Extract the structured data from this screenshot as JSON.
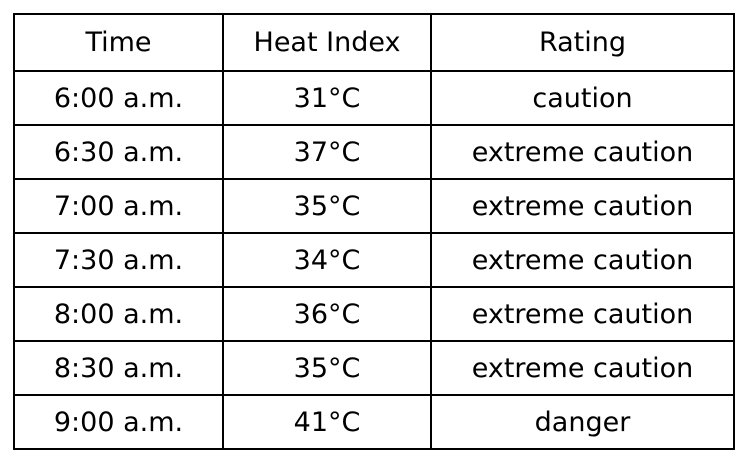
{
  "table": {
    "header": [
      "Time",
      "Heat Index",
      "Rating"
    ],
    "rows": [
      [
        "6:00 a.m.",
        "31°C",
        "caution"
      ],
      [
        "6:30 a.m.",
        "37°C",
        "extreme caution"
      ],
      [
        "7:00 a.m.",
        "35°C",
        "extreme caution"
      ],
      [
        "7:30 a.m.",
        "34°C",
        "extreme caution"
      ],
      [
        "8:00 a.m.",
        "36°C",
        "extreme caution"
      ],
      [
        "8:30 a.m.",
        "35°C",
        "extreme caution"
      ],
      [
        "9:00 a.m.",
        "41°C",
        "danger"
      ]
    ]
  }
}
